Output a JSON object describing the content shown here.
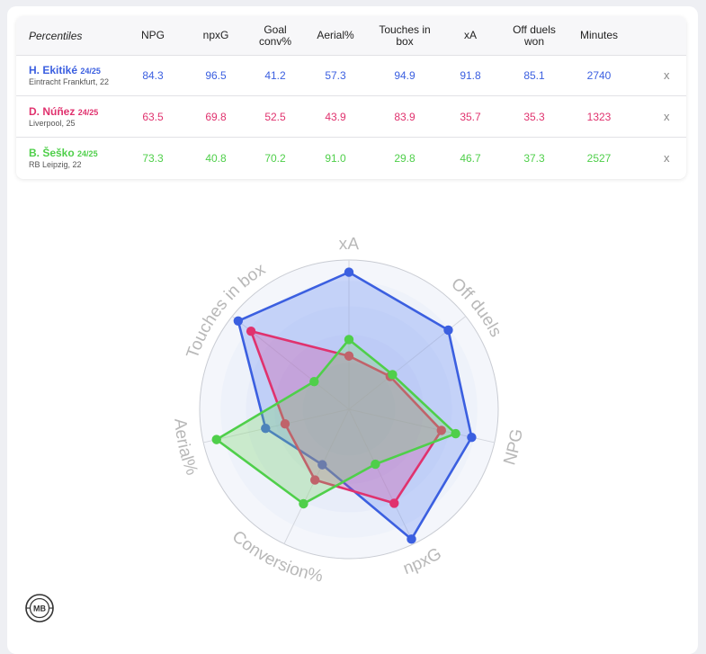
{
  "table": {
    "header_label": "Percentiles",
    "columns": [
      {
        "lines": [
          "NPG"
        ]
      },
      {
        "lines": [
          "npxG"
        ]
      },
      {
        "lines": [
          "Goal",
          "conv%"
        ]
      },
      {
        "lines": [
          "Aerial%"
        ]
      },
      {
        "lines": [
          "Touches in",
          "box"
        ]
      },
      {
        "lines": [
          "xA"
        ]
      },
      {
        "lines": [
          "Off duels",
          "won"
        ]
      },
      {
        "lines": [
          "Minutes"
        ]
      }
    ],
    "remove_label": "x",
    "players": [
      {
        "name": "H. Ekitiké",
        "season": "24/25",
        "club": "Eintracht Frankfurt, 22",
        "color": "#3b5fe0",
        "values": [
          "84.3",
          "96.5",
          "41.2",
          "57.3",
          "94.9",
          "91.8",
          "85.1",
          "2740"
        ]
      },
      {
        "name": "D. Núñez",
        "season": "24/25",
        "club": "Liverpool, 25",
        "color": "#e0326e",
        "values": [
          "63.5",
          "69.8",
          "52.5",
          "43.9",
          "83.9",
          "35.7",
          "35.3",
          "1323"
        ]
      },
      {
        "name": "B. Šeško",
        "season": "24/25",
        "club": "RB Leipzig, 22",
        "color": "#4fcf4a",
        "values": [
          "73.3",
          "40.8",
          "70.2",
          "91.0",
          "29.8",
          "46.7",
          "37.3",
          "2527"
        ]
      }
    ]
  },
  "chart_data": {
    "type": "radar",
    "axes": [
      "xA",
      "Off duels",
      "NPG",
      "npxG",
      "Conversion%",
      "Aerial%",
      "Touches in box"
    ],
    "range": [
      0,
      100
    ],
    "series": [
      {
        "name": "H. Ekitiké",
        "color": "#3b5fe0",
        "fill": "rgba(90,130,245,0.28)",
        "values": [
          91.8,
          85.1,
          84.3,
          96.5,
          41.2,
          57.3,
          94.9
        ]
      },
      {
        "name": "D. Núñez",
        "color": "#e0326e",
        "fill": "rgba(214,60,150,0.28)",
        "values": [
          35.7,
          35.3,
          63.5,
          69.8,
          52.5,
          43.9,
          83.9
        ]
      },
      {
        "name": "B. Šeško",
        "color": "#4fcf4a",
        "fill": "rgba(120,215,100,0.30)",
        "values": [
          46.7,
          37.3,
          73.3,
          40.8,
          70.2,
          91.0,
          29.8
        ]
      }
    ]
  },
  "logo_text": "MB"
}
